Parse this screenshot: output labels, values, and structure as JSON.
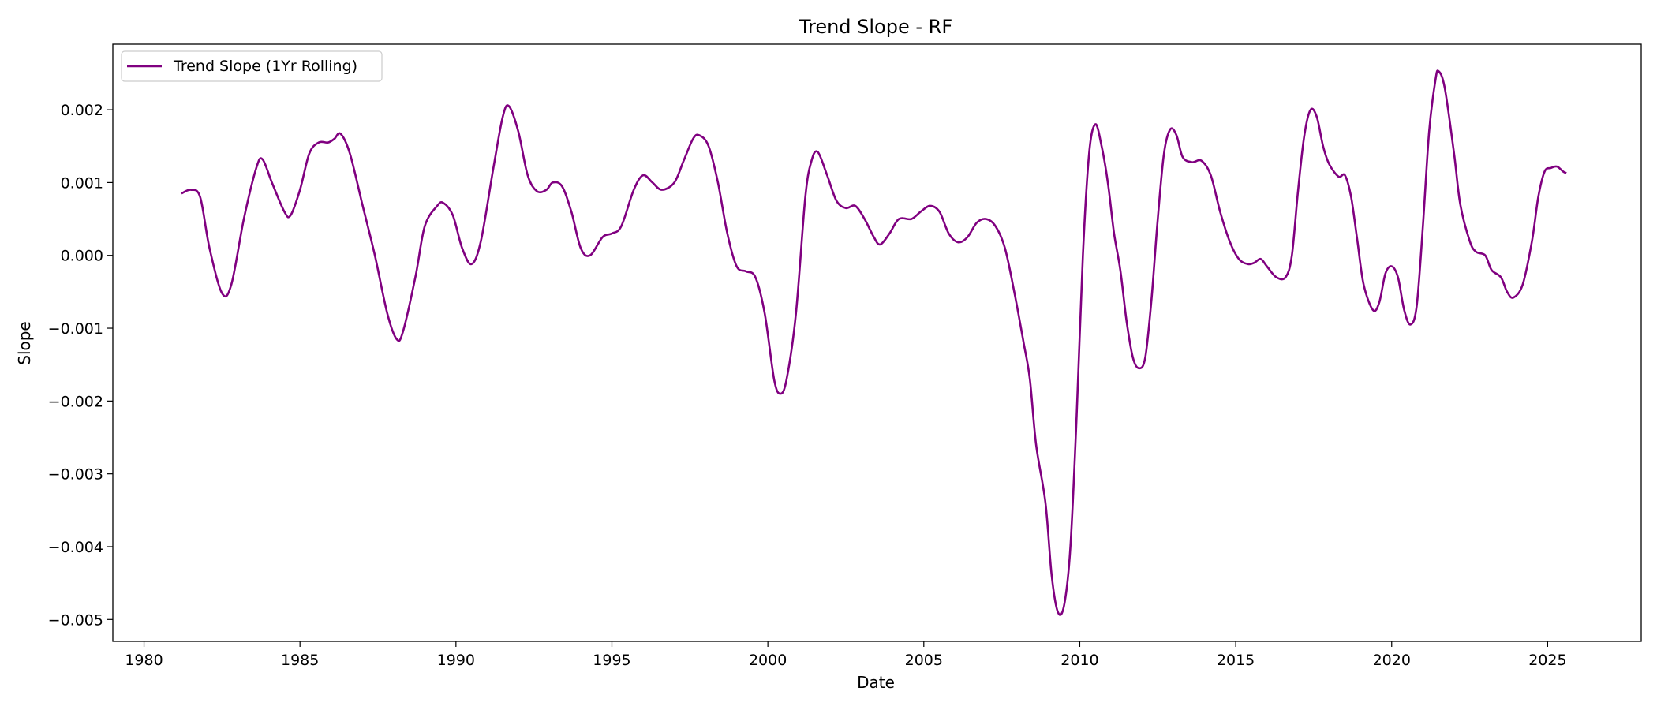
{
  "chart_data": {
    "type": "line",
    "title": "Trend Slope - RF",
    "xlabel": "Date",
    "ylabel": "Slope",
    "xlim": [
      1979,
      2028
    ],
    "ylim": [
      -0.0053,
      0.0029
    ],
    "xticks": [
      1980,
      1985,
      1990,
      1995,
      2000,
      2005,
      2010,
      2015,
      2020,
      2025
    ],
    "xtick_labels": [
      "1980",
      "1985",
      "1990",
      "1995",
      "2000",
      "2005",
      "2010",
      "2015",
      "2020",
      "2025"
    ],
    "yticks": [
      0.002,
      0.001,
      0.0,
      -0.001,
      -0.002,
      -0.003,
      -0.004,
      -0.005
    ],
    "ytick_labels": [
      "0.002",
      "0.001",
      "0.000",
      "−0.001",
      "−0.002",
      "−0.003",
      "−0.004",
      "−0.005"
    ],
    "grid": false,
    "legend_position": "top-left",
    "series": [
      {
        "name": "Trend Slope (1Yr Rolling)",
        "color": "#800080",
        "points": [
          [
            1981.2,
            0.00085
          ],
          [
            1981.5,
            0.0009
          ],
          [
            1981.8,
            0.0008
          ],
          [
            1982.1,
            0.0001
          ],
          [
            1982.5,
            -0.00052
          ],
          [
            1982.8,
            -0.0004
          ],
          [
            1983.2,
            0.0005
          ],
          [
            1983.6,
            0.0012
          ],
          [
            1983.8,
            0.00132
          ],
          [
            1984.1,
            0.001
          ],
          [
            1984.5,
            0.0006
          ],
          [
            1984.7,
            0.00055
          ],
          [
            1985.0,
            0.0009
          ],
          [
            1985.3,
            0.0014
          ],
          [
            1985.6,
            0.00155
          ],
          [
            1985.9,
            0.00155
          ],
          [
            1986.1,
            0.0016
          ],
          [
            1986.3,
            0.00167
          ],
          [
            1986.6,
            0.0014
          ],
          [
            1987.0,
            0.0007
          ],
          [
            1987.4,
            0.0
          ],
          [
            1987.8,
            -0.0008
          ],
          [
            1988.1,
            -0.00115
          ],
          [
            1988.3,
            -0.00105
          ],
          [
            1988.7,
            -0.0003
          ],
          [
            1989.0,
            0.0004
          ],
          [
            1989.4,
            0.00068
          ],
          [
            1989.6,
            0.00072
          ],
          [
            1989.9,
            0.00055
          ],
          [
            1990.2,
            0.0001
          ],
          [
            1990.5,
            -0.00012
          ],
          [
            1990.8,
            0.0002
          ],
          [
            1991.2,
            0.0012
          ],
          [
            1991.5,
            0.0019
          ],
          [
            1991.7,
            0.00205
          ],
          [
            1992.0,
            0.0017
          ],
          [
            1992.3,
            0.0011
          ],
          [
            1992.6,
            0.00088
          ],
          [
            1992.9,
            0.0009
          ],
          [
            1993.1,
            0.001
          ],
          [
            1993.4,
            0.00095
          ],
          [
            1993.7,
            0.0006
          ],
          [
            1994.0,
            0.0001
          ],
          [
            1994.3,
            0.0
          ],
          [
            1994.7,
            0.00025
          ],
          [
            1995.0,
            0.0003
          ],
          [
            1995.3,
            0.0004
          ],
          [
            1995.7,
            0.0009
          ],
          [
            1996.0,
            0.0011
          ],
          [
            1996.3,
            0.001
          ],
          [
            1996.6,
            0.0009
          ],
          [
            1997.0,
            0.001
          ],
          [
            1997.3,
            0.0013
          ],
          [
            1997.6,
            0.0016
          ],
          [
            1997.8,
            0.00165
          ],
          [
            1998.1,
            0.0015
          ],
          [
            1998.4,
            0.001
          ],
          [
            1998.7,
            0.0003
          ],
          [
            1999.0,
            -0.00015
          ],
          [
            1999.3,
            -0.00022
          ],
          [
            1999.6,
            -0.0003
          ],
          [
            1999.9,
            -0.0008
          ],
          [
            2000.2,
            -0.0017
          ],
          [
            2000.4,
            -0.0019
          ],
          [
            2000.6,
            -0.0017
          ],
          [
            2000.9,
            -0.0008
          ],
          [
            2001.2,
            0.0008
          ],
          [
            2001.4,
            0.0013
          ],
          [
            2001.6,
            0.00142
          ],
          [
            2001.9,
            0.0011
          ],
          [
            2002.2,
            0.00075
          ],
          [
            2002.5,
            0.00065
          ],
          [
            2002.8,
            0.00068
          ],
          [
            2003.1,
            0.0005
          ],
          [
            2003.4,
            0.00025
          ],
          [
            2003.6,
            0.00015
          ],
          [
            2003.9,
            0.0003
          ],
          [
            2004.2,
            0.0005
          ],
          [
            2004.6,
            0.0005
          ],
          [
            2004.9,
            0.0006
          ],
          [
            2005.2,
            0.00068
          ],
          [
            2005.5,
            0.0006
          ],
          [
            2005.8,
            0.0003
          ],
          [
            2006.1,
            0.00018
          ],
          [
            2006.4,
            0.00025
          ],
          [
            2006.7,
            0.00045
          ],
          [
            2007.0,
            0.0005
          ],
          [
            2007.3,
            0.0004
          ],
          [
            2007.6,
            0.0001
          ],
          [
            2007.9,
            -0.0005
          ],
          [
            2008.2,
            -0.0012
          ],
          [
            2008.4,
            -0.0017
          ],
          [
            2008.6,
            -0.0026
          ],
          [
            2008.9,
            -0.0034
          ],
          [
            2009.1,
            -0.0044
          ],
          [
            2009.3,
            -0.0049
          ],
          [
            2009.5,
            -0.0048
          ],
          [
            2009.7,
            -0.004
          ],
          [
            2009.9,
            -0.0022
          ],
          [
            2010.1,
            0.0
          ],
          [
            2010.3,
            0.0014
          ],
          [
            2010.5,
            0.0018
          ],
          [
            2010.7,
            0.0015
          ],
          [
            2010.9,
            0.001
          ],
          [
            2011.1,
            0.0003
          ],
          [
            2011.3,
            -0.0002
          ],
          [
            2011.5,
            -0.0009
          ],
          [
            2011.7,
            -0.0014
          ],
          [
            2011.9,
            -0.00155
          ],
          [
            2012.1,
            -0.0014
          ],
          [
            2012.3,
            -0.0006
          ],
          [
            2012.5,
            0.0005
          ],
          [
            2012.7,
            0.0014
          ],
          [
            2012.9,
            0.00173
          ],
          [
            2013.1,
            0.00165
          ],
          [
            2013.3,
            0.00135
          ],
          [
            2013.6,
            0.00128
          ],
          [
            2013.9,
            0.0013
          ],
          [
            2014.2,
            0.0011
          ],
          [
            2014.5,
            0.0006
          ],
          [
            2014.8,
            0.0002
          ],
          [
            2015.1,
            -5e-05
          ],
          [
            2015.4,
            -0.00012
          ],
          [
            2015.6,
            -0.0001
          ],
          [
            2015.8,
            -5e-05
          ],
          [
            2016.0,
            -0.00015
          ],
          [
            2016.3,
            -0.0003
          ],
          [
            2016.6,
            -0.0003
          ],
          [
            2016.8,
            0.0
          ],
          [
            2017.0,
            0.0009
          ],
          [
            2017.2,
            0.00165
          ],
          [
            2017.4,
            0.002
          ],
          [
            2017.6,
            0.0019
          ],
          [
            2017.8,
            0.0015
          ],
          [
            2018.0,
            0.00125
          ],
          [
            2018.3,
            0.00108
          ],
          [
            2018.5,
            0.0011
          ],
          [
            2018.7,
            0.0008
          ],
          [
            2018.9,
            0.0002
          ],
          [
            2019.1,
            -0.0004
          ],
          [
            2019.4,
            -0.00075
          ],
          [
            2019.6,
            -0.00065
          ],
          [
            2019.8,
            -0.00025
          ],
          [
            2020.0,
            -0.00015
          ],
          [
            2020.2,
            -0.0003
          ],
          [
            2020.4,
            -0.00075
          ],
          [
            2020.6,
            -0.00095
          ],
          [
            2020.8,
            -0.0007
          ],
          [
            2021.0,
            0.0004
          ],
          [
            2021.2,
            0.0017
          ],
          [
            2021.4,
            0.0024
          ],
          [
            2021.5,
            0.00253
          ],
          [
            2021.7,
            0.0023
          ],
          [
            2022.0,
            0.0014
          ],
          [
            2022.2,
            0.0007
          ],
          [
            2022.5,
            0.0002
          ],
          [
            2022.7,
            5e-05
          ],
          [
            2023.0,
            0.0
          ],
          [
            2023.2,
            -0.0002
          ],
          [
            2023.5,
            -0.0003
          ],
          [
            2023.7,
            -0.0005
          ],
          [
            2023.9,
            -0.00058
          ],
          [
            2024.2,
            -0.0004
          ],
          [
            2024.5,
            0.0002
          ],
          [
            2024.7,
            0.0008
          ],
          [
            2024.9,
            0.00115
          ],
          [
            2025.1,
            0.0012
          ],
          [
            2025.3,
            0.00122
          ],
          [
            2025.5,
            0.00115
          ],
          [
            2025.6,
            0.00113
          ]
        ]
      }
    ]
  }
}
